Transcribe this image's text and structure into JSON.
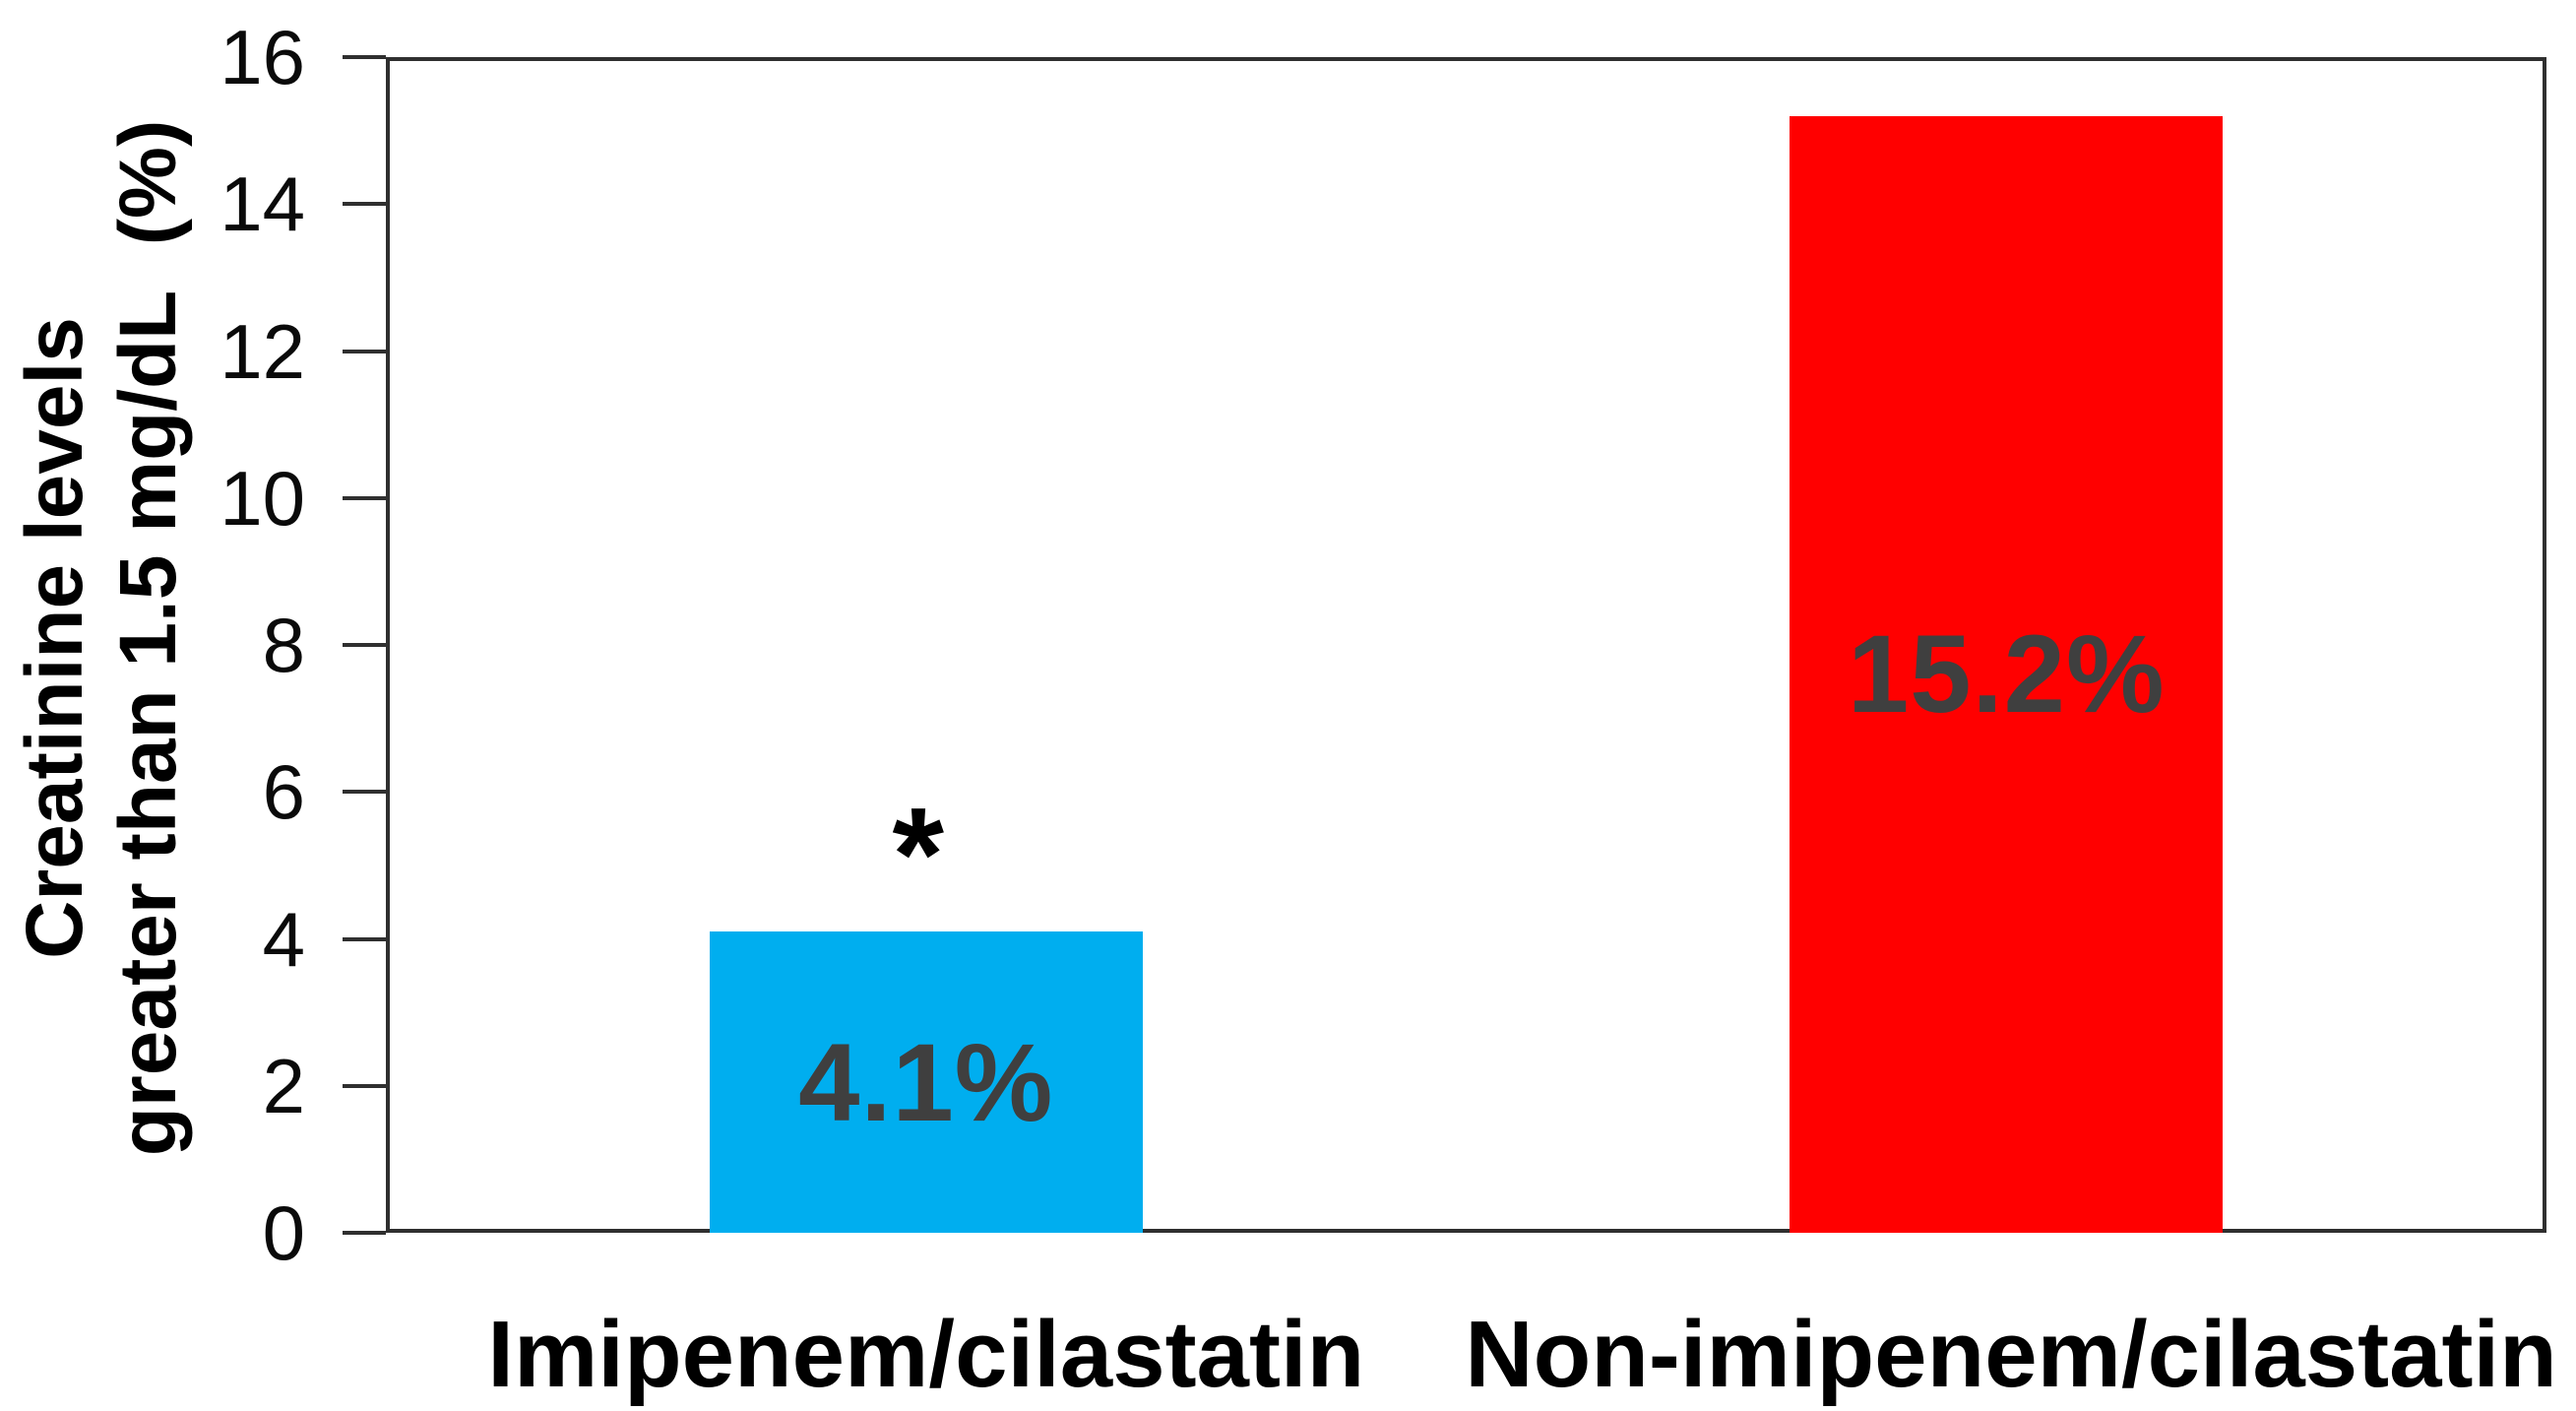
{
  "chart_data": {
    "type": "bar",
    "title": "",
    "categories": [
      "Imipenem/cilastatin",
      "Non-imipenem/cilastatin"
    ],
    "values": [
      4.1,
      15.2
    ],
    "bar_labels": [
      "4.1%",
      "15.2%"
    ],
    "bar_colors": [
      "#00AEEF",
      "#FF0000"
    ],
    "bar_label_color": "#3F3F3F",
    "axis_color": "#2F2F2F",
    "text_color": "#000000",
    "ylabel_line1": "Creatinine levels",
    "ylabel_line2": "greater than 1.5 mg/dL  (%)",
    "xlabel": "",
    "ylim": [
      0,
      16
    ],
    "yticks": [
      0,
      2,
      4,
      6,
      8,
      10,
      12,
      14,
      16
    ],
    "ytick_labels": [
      "0",
      "2",
      "4",
      "6",
      "8",
      "10",
      "12",
      "14",
      "16"
    ],
    "grid": false,
    "legend": false,
    "plot_frame": true,
    "annotation": {
      "text": "*",
      "category_index": 0,
      "meaning": "significance-marker"
    }
  }
}
